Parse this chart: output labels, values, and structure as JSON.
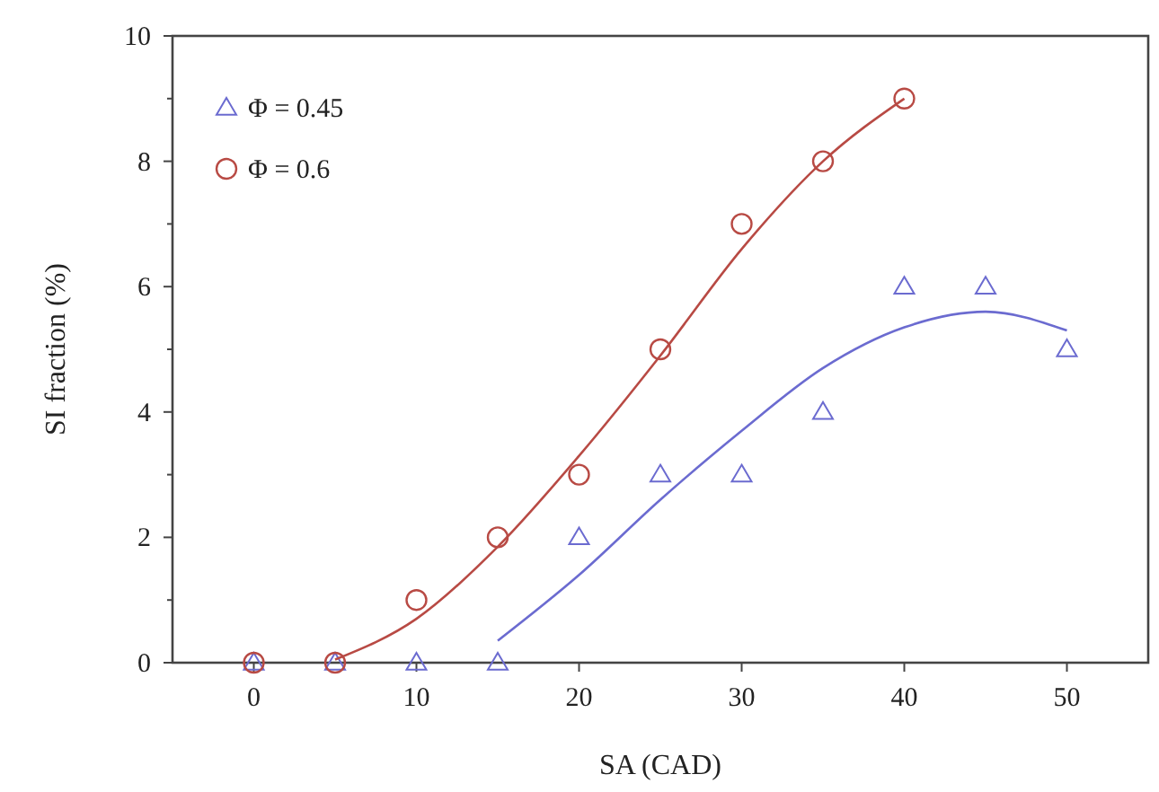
{
  "chart_data": {
    "type": "scatter",
    "xlabel": "SA (CAD)",
    "ylabel": "SI fraction (%)",
    "xlim": [
      -5,
      55
    ],
    "xticks": [
      0,
      10,
      20,
      30,
      40,
      50
    ],
    "ylim": [
      0,
      10
    ],
    "yticks": [
      0,
      {
        "value": 1,
        "label": null
      },
      2,
      {
        "value": 3,
        "label": null
      },
      4,
      {
        "value": 5,
        "label": null
      },
      6,
      {
        "value": 7,
        "label": null
      },
      8,
      {
        "value": 9,
        "label": null
      },
      10
    ],
    "grid": false,
    "legend": "top left",
    "series": [
      {
        "name": "Φ = 0.45",
        "color": "#6b6bd0",
        "marker": "triangle",
        "x": [
          0,
          5,
          10,
          15,
          20,
          25,
          30,
          35,
          40,
          45,
          50
        ],
        "values": [
          0,
          0,
          0,
          0,
          2,
          3,
          3,
          4,
          6,
          6,
          5
        ]
      },
      {
        "name": "Φ = 0.6",
        "color": "#b84a44",
        "marker": "circle",
        "x": [
          0,
          5,
          10,
          15,
          20,
          25,
          30,
          35,
          40
        ],
        "values": [
          0,
          0,
          1,
          2,
          3,
          5,
          7,
          8,
          9
        ]
      },
      {
        "type": "line",
        "color": "#6b6bd0",
        "marker": "none",
        "x": [
          15,
          20,
          25,
          30,
          35,
          40,
          45,
          50
        ],
        "values": [
          0.35,
          1.4,
          2.6,
          3.7,
          4.7,
          5.35,
          5.6,
          5.3
        ]
      },
      {
        "type": "line",
        "color": "#b84a44",
        "marker": "none",
        "x": [
          5,
          10,
          15,
          20,
          25,
          30,
          35,
          40
        ],
        "values": [
          0.05,
          0.7,
          1.85,
          3.3,
          4.9,
          6.6,
          8.0,
          9.0
        ]
      }
    ]
  }
}
